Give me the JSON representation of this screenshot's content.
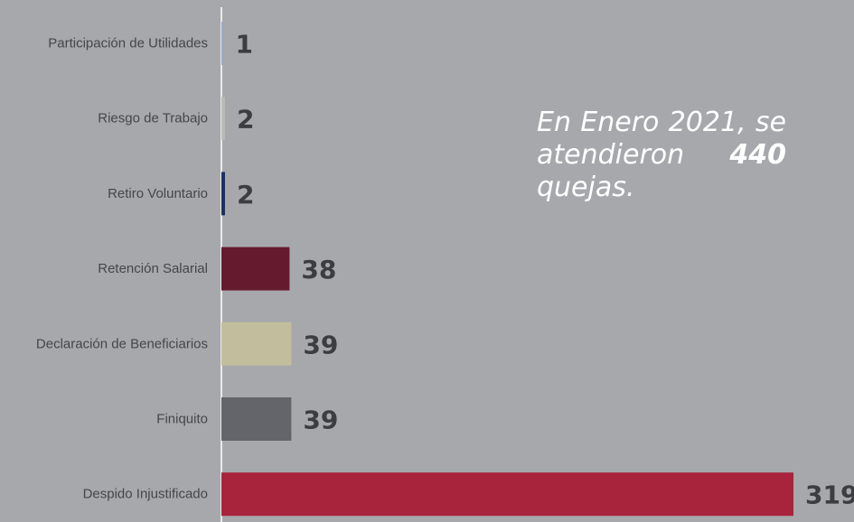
{
  "chart_data": {
    "type": "bar",
    "orientation": "horizontal",
    "categories": [
      "Participación de Utilidades",
      "Riesgo de Trabajo",
      "Retiro Voluntario",
      "Retención Salarial",
      "Declaración de Beneficiarios",
      "Finiquito",
      "Despido Injustificado"
    ],
    "values": [
      1,
      2,
      2,
      38,
      39,
      39,
      319
    ],
    "colors": [
      "#9ba9bf",
      "#b9b9b6",
      "#1d2f5e",
      "#661a2d",
      "#c2bd9c",
      "#64656a",
      "#a8233c"
    ],
    "xlim": [
      0,
      319
    ],
    "grid": false,
    "legend": "none"
  },
  "callout": {
    "line1": "En Enero 2021, se atendieron",
    "count": "440",
    "line2": "quejas."
  }
}
